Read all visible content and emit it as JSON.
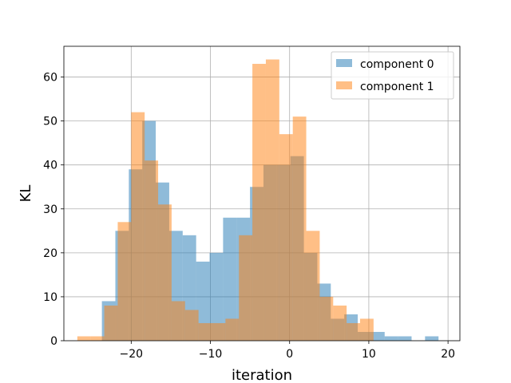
{
  "chart_data": {
    "type": "histogram",
    "title": "",
    "xlabel": "iteration",
    "ylabel": "KL",
    "xlim": [
      -28.5,
      21.5
    ],
    "ylim": [
      0,
      67
    ],
    "xticks": [
      -20,
      -10,
      0,
      10,
      20
    ],
    "yticks": [
      0,
      10,
      20,
      30,
      40,
      50,
      60
    ],
    "grid": true,
    "legend_position": "top-right",
    "series": [
      {
        "name": "component 0",
        "color": "#1f77b4",
        "alpha": 0.5,
        "bin_edges": [
          -23.7,
          -22.0,
          -20.3,
          -18.6,
          -16.9,
          -15.2,
          -13.5,
          -11.8,
          -10.1,
          -8.4,
          -6.7,
          -5.0,
          -3.3,
          -1.6,
          0.1,
          1.8,
          3.5,
          5.2,
          6.9,
          8.6,
          10.3,
          12.0,
          13.7,
          15.4,
          17.1,
          18.8
        ],
        "counts": [
          9,
          25,
          39,
          50,
          36,
          25,
          24,
          18,
          20,
          28,
          28,
          35,
          40,
          40,
          42,
          20,
          13,
          5,
          6,
          2,
          2,
          1,
          1,
          0,
          1
        ]
      },
      {
        "name": "component 1",
        "color": "#ff7f0e",
        "alpha": 0.5,
        "bin_edges": [
          -26.8,
          -25.1,
          -23.4,
          -21.7,
          -20.0,
          -18.3,
          -16.6,
          -14.9,
          -13.2,
          -11.5,
          -9.8,
          -8.1,
          -6.4,
          -4.7,
          -3.0,
          -1.3,
          0.4,
          2.1,
          3.8,
          5.5,
          7.2,
          8.9,
          10.6
        ],
        "counts": [
          1,
          1,
          8,
          27,
          52,
          41,
          31,
          9,
          7,
          4,
          4,
          5,
          24,
          63,
          64,
          47,
          51,
          25,
          10,
          8,
          4,
          5
        ]
      }
    ]
  }
}
